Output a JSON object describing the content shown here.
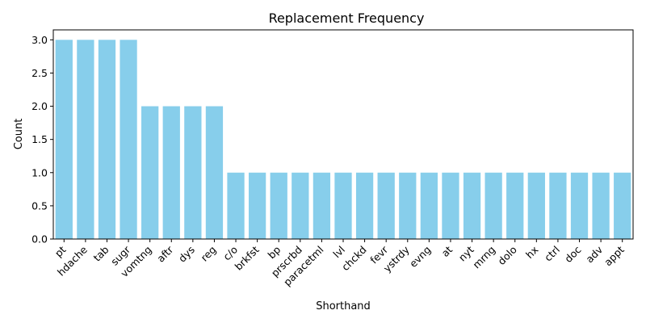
{
  "chart_data": {
    "type": "bar",
    "title": "Replacement Frequency",
    "xlabel": "Shorthand",
    "ylabel": "Count",
    "ylim": [
      0,
      3.15
    ],
    "yticks": [
      0.0,
      0.5,
      1.0,
      1.5,
      2.0,
      2.5,
      3.0
    ],
    "ytick_labels": [
      "0.0",
      "0.5",
      "1.0",
      "1.5",
      "2.0",
      "2.5",
      "3.0"
    ],
    "grid": false,
    "bar_color": "#87CEEB",
    "categories": [
      "pt",
      "hdache",
      "tab",
      "sugr",
      "vomtng",
      "aftr",
      "dys",
      "reg",
      "c/o",
      "brkfst",
      "bp",
      "prscrbd",
      "paracetml",
      "lvl",
      "chckd",
      "fevr",
      "ystrdy",
      "evng",
      "at",
      "nyt",
      "mrng",
      "dolo",
      "hx",
      "ctrl",
      "doc",
      "adv",
      "appt"
    ],
    "values": [
      3,
      3,
      3,
      3,
      2,
      2,
      2,
      2,
      1,
      1,
      1,
      1,
      1,
      1,
      1,
      1,
      1,
      1,
      1,
      1,
      1,
      1,
      1,
      1,
      1,
      1,
      1
    ]
  }
}
